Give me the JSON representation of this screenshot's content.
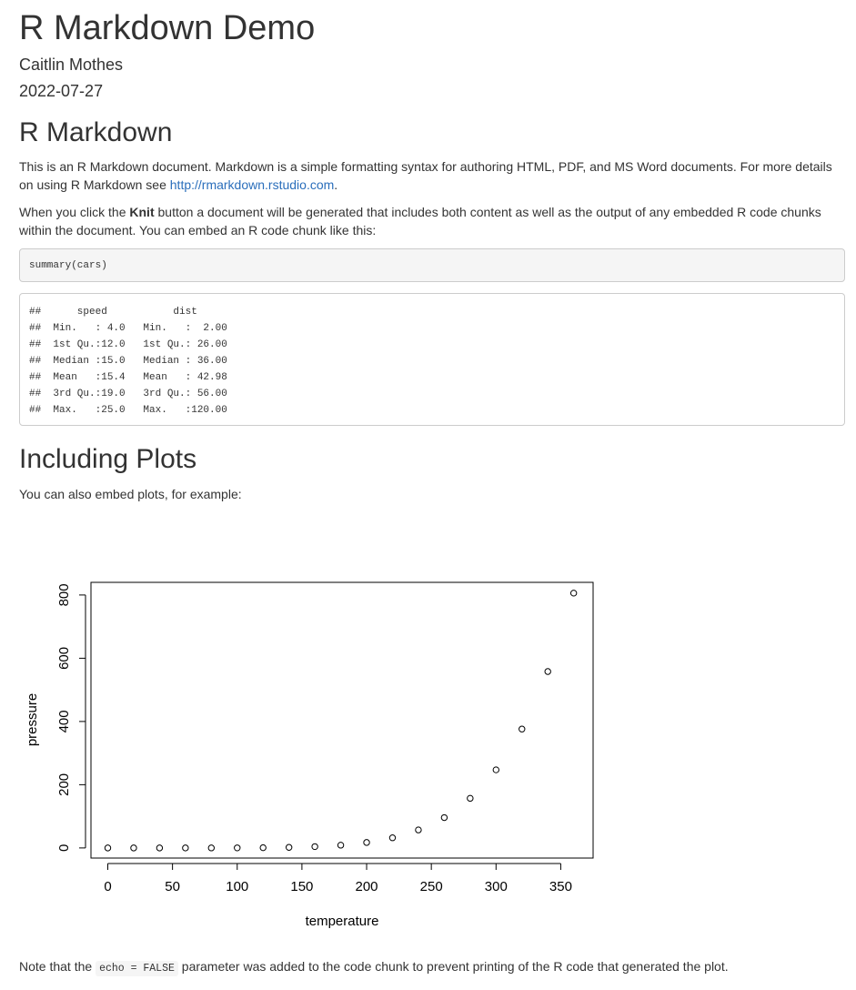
{
  "doc": {
    "title": "R Markdown Demo",
    "author": "Caitlin Mothes",
    "date": "2022-07-27"
  },
  "section1": {
    "heading": "R Markdown",
    "para1_text": "This is an R Markdown document. Markdown is a simple formatting syntax for authoring HTML, PDF, and MS Word documents. For more details on using R Markdown see ",
    "para1_link": "http://rmarkdown.rstudio.com",
    "para1_end": ".",
    "para2_before": "When you click the ",
    "para2_bold": "Knit",
    "para2_after": " button a document will be generated that includes both content as well as the output of any embedded R code chunks within the document. You can embed an R code chunk like this:",
    "code_input": "summary(cars)",
    "code_output": [
      "##      speed           dist       ",
      "##  Min.   : 4.0   Min.   :  2.00  ",
      "##  1st Qu.:12.0   1st Qu.: 26.00  ",
      "##  Median :15.0   Median : 36.00  ",
      "##  Mean   :15.4   Mean   : 42.98  ",
      "##  3rd Qu.:19.0   3rd Qu.: 56.00  ",
      "##  Max.   :25.0   Max.   :120.00  "
    ]
  },
  "section2": {
    "heading": "Including Plots",
    "para_text": "You can also embed plots, for example:",
    "note_before": "Note that the ",
    "note_code": "echo = FALSE",
    "note_after": " parameter was added to the code chunk to prevent printing of the R code that generated the plot."
  },
  "chart_data": {
    "type": "scatter",
    "title": "",
    "xlabel": "temperature",
    "ylabel": "pressure",
    "x": [
      0,
      20,
      40,
      60,
      80,
      100,
      120,
      140,
      160,
      180,
      200,
      220,
      240,
      260,
      280,
      300,
      320,
      340,
      360
    ],
    "y": [
      0.0002,
      0.0012,
      0.006,
      0.03,
      0.09,
      0.27,
      0.75,
      1.85,
      4.2,
      8.8,
      17.3,
      32.1,
      57.0,
      96.0,
      157.0,
      247.0,
      376.0,
      558.0,
      806.0
    ],
    "xlim": [
      -13,
      375
    ],
    "ylim": [
      -32,
      840
    ],
    "xticks": [
      "0",
      "50",
      "100",
      "150",
      "200",
      "250",
      "300",
      "350"
    ],
    "yticks": [
      "0",
      "200",
      "400",
      "600",
      "800"
    ],
    "marker": "open-circle",
    "grid": false
  }
}
